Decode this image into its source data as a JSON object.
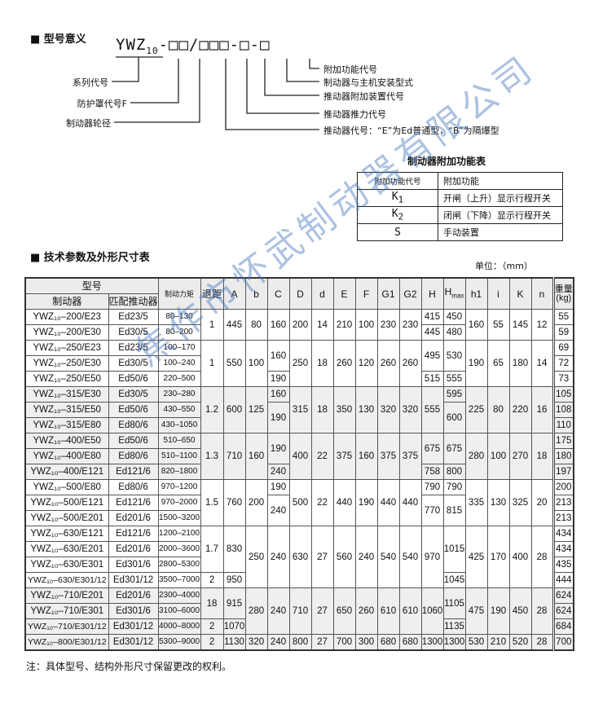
{
  "model_meaning": {
    "title": "■ 型号意义",
    "code_prefix": "YWZ",
    "code_sub": "10",
    "code_rest": "-□□/□□□-□-□",
    "left_labels": [
      "系列代号",
      "防护罩代号F",
      "制动器轮径"
    ],
    "right_labels": [
      "附加功能代号",
      "制动器与主机安装型式",
      "推动器附加装置代号",
      "推动器推力代号",
      "推动器代号：“E”为Ed普通型，“B”为隔爆型"
    ]
  },
  "accessory_table": {
    "title": "制动器附加功能表",
    "headers": [
      "附加功能代号",
      "附加功能"
    ],
    "rows": [
      {
        "code": "K",
        "sub": "1",
        "desc": "开闸（上升）显示行程开关"
      },
      {
        "code": "K",
        "sub": "2",
        "desc": "闭闸（下降）显示行程开关"
      },
      {
        "code": "S",
        "sub": "",
        "desc": "手动装置"
      }
    ]
  },
  "spec_table": {
    "title": "■ 技术参数及外形尺寸表",
    "unit": "单位：（mm）",
    "headers": {
      "model_group": "型号",
      "brake": "制动器",
      "actuator": "匹配推动器",
      "torque": "制动力矩",
      "retreat": "退距",
      "cols": [
        "A",
        "b",
        "C",
        "D",
        "d",
        "E",
        "F",
        "G1",
        "G2",
        "H"
      ],
      "hmax": "H",
      "hmax_sub": "max",
      "cols2": [
        "h1",
        "i",
        "K",
        "n"
      ],
      "weight": "重量",
      "weight_unit": "(kg)"
    },
    "rows": [
      [
        "YWZ₁₀–200/E23",
        "Ed23/5",
        "80–130",
        {
          "t": "1",
          "rs": 2
        },
        {
          "t": "445",
          "rs": 2
        },
        {
          "t": "80",
          "rs": 2
        },
        {
          "t": "160",
          "rs": 2
        },
        {
          "t": "200",
          "rs": 2
        },
        {
          "t": "14",
          "rs": 2
        },
        {
          "t": "210",
          "rs": 2
        },
        {
          "t": "100",
          "rs": 2
        },
        {
          "t": "230",
          "rs": 2
        },
        {
          "t": "230",
          "rs": 2
        },
        "415",
        "450",
        {
          "t": "160",
          "rs": 2
        },
        {
          "t": "55",
          "rs": 2
        },
        {
          "t": "145",
          "rs": 2
        },
        {
          "t": "12",
          "rs": 2
        },
        "55"
      ],
      [
        "YWZ₁₀–200/E30",
        "Ed30/5",
        "80–200",
        "445",
        "480",
        "59"
      ],
      [
        "YWZ₁₀–250/E23",
        "Ed23/5",
        "100–170",
        {
          "t": "1",
          "rs": 3
        },
        {
          "t": "550",
          "rs": 3
        },
        {
          "t": "100",
          "rs": 3
        },
        {
          "t": "160",
          "rs": 2
        },
        {
          "t": "250",
          "rs": 3
        },
        {
          "t": "18",
          "rs": 3
        },
        {
          "t": "260",
          "rs": 3
        },
        {
          "t": "120",
          "rs": 3
        },
        {
          "t": "260",
          "rs": 3
        },
        {
          "t": "260",
          "rs": 3
        },
        {
          "t": "495",
          "rs": 2
        },
        {
          "t": "530",
          "rs": 2
        },
        {
          "t": "190",
          "rs": 3
        },
        {
          "t": "65",
          "rs": 3
        },
        {
          "t": "180",
          "rs": 3
        },
        {
          "t": "14",
          "rs": 3
        },
        "69"
      ],
      [
        "YWZ₁₀–250/E30",
        "Ed30/5",
        "100–240",
        "72"
      ],
      [
        "YWZ₁₀–250/E50",
        "Ed50/6",
        "220–500",
        "190",
        "515",
        "555",
        "73"
      ],
      [
        "YWZ₁₀–315/E30",
        "Ed30/5",
        "230–280",
        {
          "t": "1.2",
          "rs": 3
        },
        {
          "t": "600",
          "rs": 3
        },
        {
          "t": "125",
          "rs": 3
        },
        "160",
        {
          "t": "315",
          "rs": 3
        },
        {
          "t": "18",
          "rs": 3
        },
        {
          "t": "350",
          "rs": 3
        },
        {
          "t": "130",
          "rs": 3
        },
        {
          "t": "320",
          "rs": 3
        },
        {
          "t": "320",
          "rs": 3
        },
        {
          "t": "555",
          "rs": 3
        },
        "595",
        {
          "t": "225",
          "rs": 3
        },
        {
          "t": "80",
          "rs": 3
        },
        {
          "t": "220",
          "rs": 3
        },
        {
          "t": "16",
          "rs": 3
        },
        "105"
      ],
      [
        "YWZ₁₀–315/E50",
        "Ed50/6",
        "430–550",
        {
          "t": "190",
          "rs": 2
        },
        {
          "t": "600",
          "rs": 2
        },
        "108"
      ],
      [
        "YWZ₁₀–315/E80",
        "Ed80/6",
        "430–1050",
        "110"
      ],
      [
        "YWZ₁₀–400/E50",
        "Ed50/6",
        "510–650",
        {
          "t": "1.3",
          "rs": 3
        },
        {
          "t": "710",
          "rs": 3
        },
        {
          "t": "160",
          "rs": 3
        },
        {
          "t": "190",
          "rs": 2
        },
        {
          "t": "400",
          "rs": 3
        },
        {
          "t": "22",
          "rs": 3
        },
        {
          "t": "375",
          "rs": 3
        },
        {
          "t": "160",
          "rs": 3
        },
        {
          "t": "375",
          "rs": 3
        },
        {
          "t": "375",
          "rs": 3
        },
        {
          "t": "675",
          "rs": 2
        },
        {
          "t": "675",
          "rs": 2
        },
        {
          "t": "280",
          "rs": 3
        },
        {
          "t": "100",
          "rs": 3
        },
        {
          "t": "270",
          "rs": 3
        },
        {
          "t": "18",
          "rs": 3
        },
        "175"
      ],
      [
        "YWZ₁₀–400/E80",
        "Ed80/6",
        "510–1100",
        "180"
      ],
      [
        "YWZ₁₀–400/E121",
        "Ed121/6",
        "820–1800",
        "240",
        "758",
        "800",
        "197"
      ],
      [
        "YWZ₁₀–500/E80",
        "Ed80/6",
        "970–1200",
        {
          "t": "1.5",
          "rs": 3
        },
        {
          "t": "760",
          "rs": 3
        },
        {
          "t": "200",
          "rs": 3
        },
        "190",
        {
          "t": "500",
          "rs": 3
        },
        {
          "t": "22",
          "rs": 3
        },
        {
          "t": "440",
          "rs": 3
        },
        {
          "t": "190",
          "rs": 3
        },
        {
          "t": "440",
          "rs": 3
        },
        {
          "t": "440",
          "rs": 3
        },
        "790",
        "790",
        {
          "t": "335",
          "rs": 3
        },
        {
          "t": "130",
          "rs": 3
        },
        {
          "t": "325",
          "rs": 3
        },
        {
          "t": "20",
          "rs": 3
        },
        "200"
      ],
      [
        "YWZ₁₀–500/E121",
        "Ed121/6",
        "970–2000",
        {
          "t": "240",
          "rs": 2
        },
        {
          "t": "770",
          "rs": 2
        },
        {
          "t": "815",
          "rs": 2
        },
        "213"
      ],
      [
        "YWZ₁₀–500/E201",
        "Ed201/6",
        "1500–3200",
        "213"
      ],
      [
        "YWZ₁₀–630/E121",
        "Ed121/6",
        "1200–2100",
        {
          "t": "1.7",
          "rs": 3
        },
        {
          "t": "830",
          "rs": 3
        },
        {
          "t": "250",
          "rs": 4
        },
        {
          "t": "240",
          "rs": 4
        },
        {
          "t": "630",
          "rs": 4
        },
        {
          "t": "27",
          "rs": 4
        },
        {
          "t": "560",
          "rs": 4
        },
        {
          "t": "240",
          "rs": 4
        },
        {
          "t": "540",
          "rs": 4
        },
        {
          "t": "540",
          "rs": 4
        },
        {
          "t": "970",
          "rs": 4
        },
        {
          "t": "1015",
          "rs": 3
        },
        {
          "t": "425",
          "rs": 4
        },
        {
          "t": "170",
          "rs": 4
        },
        {
          "t": "400",
          "rs": 4
        },
        {
          "t": "28",
          "rs": 4
        },
        "434"
      ],
      [
        "YWZ₁₀–630/E201",
        "Ed201/6",
        "2000–3600",
        "434"
      ],
      [
        "YWZ₁₀–630/E301",
        "Ed301/6",
        "2800–5300",
        "435"
      ],
      [
        "YWZ₁₀–630/E301/12",
        "Ed301/12",
        "3500–7000",
        "2",
        "950",
        "1045",
        "444"
      ],
      [
        "YWZ₁₀–710/E201",
        "Ed201/6",
        "2300–4000",
        {
          "t": "18",
          "rs": 2
        },
        {
          "t": "915",
          "rs": 2
        },
        {
          "t": "280",
          "rs": 3
        },
        {
          "t": "240",
          "rs": 3
        },
        {
          "t": "710",
          "rs": 3
        },
        {
          "t": "27",
          "rs": 3
        },
        {
          "t": "650",
          "rs": 3
        },
        {
          "t": "260",
          "rs": 3
        },
        {
          "t": "610",
          "rs": 3
        },
        {
          "t": "610",
          "rs": 3
        },
        {
          "t": "1060",
          "rs": 3
        },
        {
          "t": "1105",
          "rs": 2
        },
        {
          "t": "475",
          "rs": 3
        },
        {
          "t": "190",
          "rs": 3
        },
        {
          "t": "450",
          "rs": 3
        },
        {
          "t": "28",
          "rs": 3
        },
        "624"
      ],
      [
        "YWZ₁₀–710/E301",
        "Ed301/6",
        "3100–6000",
        "624"
      ],
      [
        "YWZ₁₀–710/E301/12",
        "Ed301/12",
        "4000–8000",
        "2",
        "1070",
        "1135",
        "684"
      ],
      [
        "YWZ₁₀–800/E301/12",
        "Ed301/12",
        "5300–9000",
        "2",
        "1130",
        "320",
        "240",
        "800",
        "27",
        "700",
        "300",
        "680",
        "680",
        "1300",
        "1300",
        "530",
        "210",
        "520",
        "28",
        "700"
      ]
    ]
  },
  "note": "注：具体型号、结构外形尺寸保留更改的权利。",
  "watermark": "焦作市怀武制动器有限公司",
  "colors": {
    "header_bg": "#ebeceb",
    "shade_bg": "#eeefee",
    "watermark": "#4678be"
  }
}
